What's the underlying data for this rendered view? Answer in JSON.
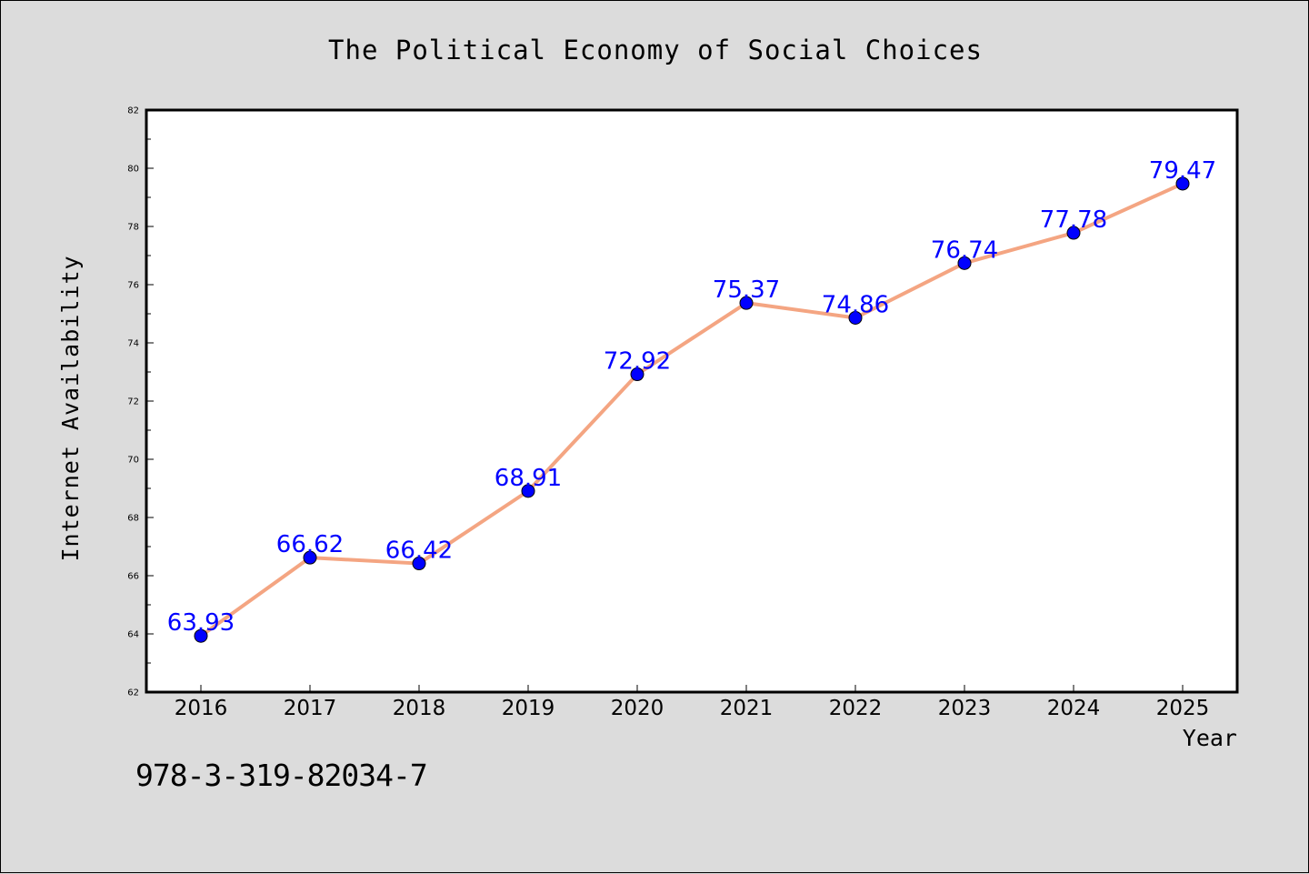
{
  "chart_data": {
    "type": "line",
    "title": "The Political Economy of Social Choices",
    "xlabel": "Year",
    "ylabel": "Internet Availability",
    "categories": [
      "2016",
      "2017",
      "2018",
      "2019",
      "2020",
      "2021",
      "2022",
      "2023",
      "2024",
      "2025"
    ],
    "series": [
      {
        "values": [
          63.93,
          66.62,
          66.42,
          68.91,
          72.92,
          75.37,
          74.86,
          76.74,
          77.78,
          79.47
        ],
        "labels": [
          "63.93",
          "66.62",
          "66.42",
          "68.91",
          "72.92",
          "75.37",
          "74.86",
          "76.74",
          "77.78",
          "79.47"
        ]
      }
    ],
    "ylim": [
      62,
      82
    ],
    "yticks": [
      "62",
      "64",
      "66",
      "68",
      "70",
      "72",
      "74",
      "76",
      "78",
      "80",
      "82"
    ],
    "grid": false,
    "legend": "none",
    "colors": {
      "line": "#f4a582",
      "marker": "#0000ff",
      "label": "#0000ff"
    }
  },
  "footer": {
    "isbn": "978-3-319-82034-7"
  }
}
